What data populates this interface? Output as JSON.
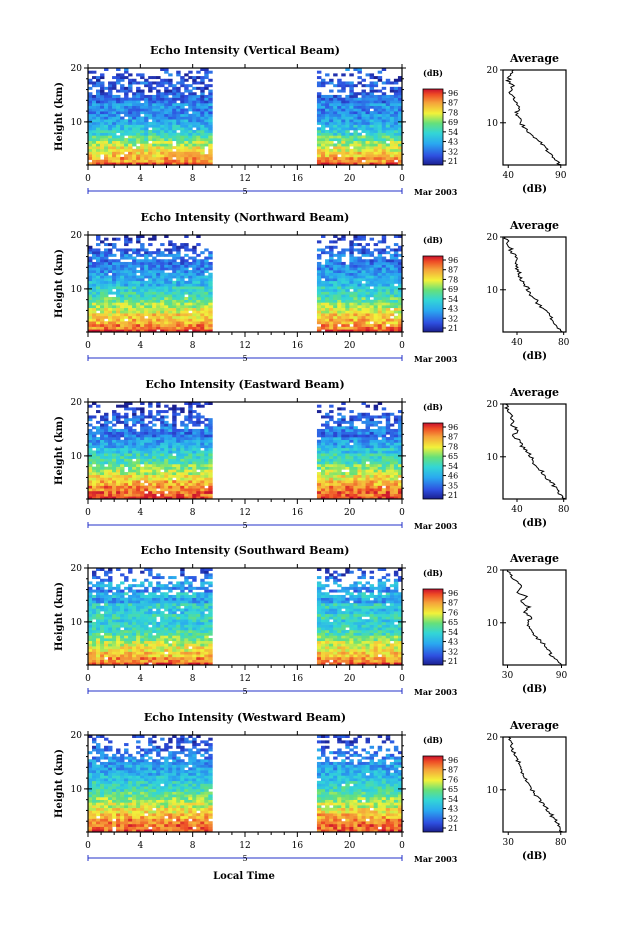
{
  "figure": {
    "bottom_xlabel": "Local Time",
    "month_label": "Mar 2003",
    "day_label": "5",
    "time_ticks": [
      "0",
      "4",
      "8",
      "12",
      "16",
      "20",
      "0"
    ],
    "height_ticks": [
      "20",
      "10"
    ],
    "ylabel": "Height (km)",
    "colorbar_unit": "(dB)",
    "avg_title": "Average",
    "avg_xlabel": "(dB)"
  },
  "chart_data": [
    {
      "type": "heatmap",
      "title": "Echo Intensity (Vertical Beam)",
      "ylabel": "Height (km)",
      "ylim": [
        2,
        20
      ],
      "x_ticks": [
        "0",
        "4",
        "8",
        "12",
        "16",
        "20",
        "0"
      ],
      "data_gap_hours": [
        9.5,
        17.5
      ],
      "colorbar": {
        "unit": "(dB)",
        "ticks": [
          "96",
          "87",
          "78",
          "69",
          "54",
          "43",
          "32",
          "21"
        ]
      },
      "average_profile": {
        "title": "Average",
        "xlabel": "(dB)",
        "xticks": [
          "40",
          "90"
        ],
        "xlim": [
          35,
          95
        ],
        "yticks": [
          "20",
          "10"
        ],
        "heights": [
          2,
          3,
          4,
          5,
          6,
          7,
          8,
          9,
          10,
          11,
          12,
          13,
          14,
          15,
          16,
          17,
          18,
          19,
          20
        ],
        "values": [
          90,
          84,
          80,
          76,
          72,
          66,
          60,
          56,
          52,
          50,
          48,
          50,
          46,
          44,
          42,
          44,
          40,
          42,
          45
        ]
      }
    },
    {
      "type": "heatmap",
      "title": "Echo Intensity (Northward Beam)",
      "ylabel": "Height (km)",
      "ylim": [
        2,
        20
      ],
      "x_ticks": [
        "0",
        "4",
        "8",
        "12",
        "16",
        "20",
        "0"
      ],
      "data_gap_hours": [
        9.5,
        17.5
      ],
      "colorbar": {
        "unit": "(dB)",
        "ticks": [
          "96",
          "87",
          "78",
          "69",
          "54",
          "43",
          "32",
          "21"
        ]
      },
      "average_profile": {
        "title": "Average",
        "xlabel": "(dB)",
        "xticks": [
          "40",
          "80"
        ],
        "xlim": [
          28,
          82
        ],
        "yticks": [
          "20",
          "10"
        ],
        "heights": [
          2,
          3,
          4,
          5,
          6,
          7,
          8,
          9,
          10,
          11,
          12,
          13,
          14,
          15,
          16,
          17,
          18,
          19,
          20
        ],
        "values": [
          80,
          74,
          70,
          68,
          64,
          60,
          56,
          52,
          50,
          46,
          44,
          42,
          40,
          38,
          40,
          36,
          34,
          32,
          30
        ]
      }
    },
    {
      "type": "heatmap",
      "title": "Echo Intensity (Eastward Beam)",
      "ylabel": "Height (km)",
      "ylim": [
        2,
        20
      ],
      "x_ticks": [
        "0",
        "4",
        "8",
        "12",
        "16",
        "20",
        "0"
      ],
      "data_gap_hours": [
        9.5,
        17.5
      ],
      "colorbar": {
        "unit": "(dB)",
        "ticks": [
          "96",
          "87",
          "78",
          "65",
          "54",
          "46",
          "35",
          "21"
        ]
      },
      "average_profile": {
        "title": "Average",
        "xlabel": "(dB)",
        "xticks": [
          "40",
          "80"
        ],
        "xlim": [
          28,
          82
        ],
        "yticks": [
          "20",
          "10"
        ],
        "heights": [
          2,
          3,
          4,
          5,
          6,
          7,
          8,
          9,
          10,
          11,
          12,
          13,
          14,
          15,
          16,
          17,
          18,
          19,
          20
        ],
        "values": [
          80,
          76,
          74,
          70,
          66,
          62,
          58,
          54,
          52,
          48,
          44,
          42,
          38,
          40,
          36,
          36,
          34,
          32,
          30
        ]
      }
    },
    {
      "type": "heatmap",
      "title": "Echo Intensity (Southward Beam)",
      "ylabel": "Height (km)",
      "ylim": [
        2,
        20
      ],
      "x_ticks": [
        "0",
        "4",
        "8",
        "12",
        "16",
        "20",
        "0"
      ],
      "data_gap_hours": [
        9.5,
        17.5
      ],
      "colorbar": {
        "unit": "(dB)",
        "ticks": [
          "96",
          "87",
          "76",
          "65",
          "54",
          "43",
          "32",
          "21"
        ]
      },
      "average_profile": {
        "title": "Average",
        "xlabel": "(dB)",
        "xticks": [
          "30",
          "90"
        ],
        "xlim": [
          25,
          95
        ],
        "yticks": [
          "20",
          "10"
        ],
        "heights": [
          2,
          3,
          4,
          5,
          6,
          7,
          8,
          9,
          10,
          11,
          12,
          13,
          14,
          15,
          16,
          17,
          18,
          19,
          20
        ],
        "values": [
          90,
          84,
          78,
          74,
          70,
          64,
          58,
          54,
          52,
          56,
          50,
          54,
          44,
          50,
          40,
          46,
          38,
          34,
          30
        ]
      }
    },
    {
      "type": "heatmap",
      "title": "Echo Intensity (Westward Beam)",
      "ylabel": "Height (km)",
      "ylim": [
        2,
        20
      ],
      "x_ticks": [
        "0",
        "4",
        "8",
        "12",
        "16",
        "20",
        "0"
      ],
      "data_gap_hours": [
        9.5,
        17.5
      ],
      "colorbar": {
        "unit": "(dB)",
        "ticks": [
          "96",
          "87",
          "76",
          "65",
          "54",
          "43",
          "32",
          "21"
        ]
      },
      "average_profile": {
        "title": "Average",
        "xlabel": "(dB)",
        "xticks": [
          "30",
          "80"
        ],
        "xlim": [
          25,
          85
        ],
        "yticks": [
          "20",
          "10"
        ],
        "heights": [
          2,
          3,
          4,
          5,
          6,
          7,
          8,
          9,
          10,
          11,
          12,
          13,
          14,
          15,
          16,
          17,
          18,
          19,
          20
        ],
        "values": [
          80,
          78,
          76,
          72,
          68,
          64,
          60,
          56,
          52,
          50,
          46,
          44,
          42,
          40,
          38,
          36,
          34,
          32,
          30
        ]
      }
    }
  ]
}
